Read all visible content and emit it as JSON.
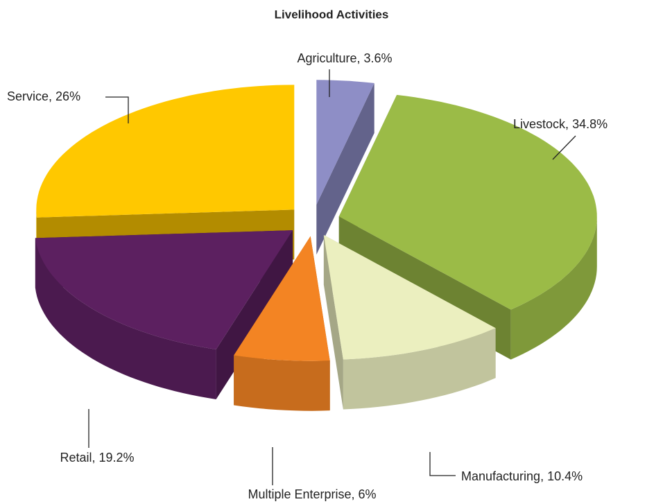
{
  "chart_data": {
    "type": "pie3d",
    "title": "Livelihood Activities",
    "categories": [
      "Agriculture",
      "Livestock",
      "Manufacturing",
      "Multiple Enterprise",
      "Retail",
      "Service"
    ],
    "values": [
      3.6,
      34.8,
      10.4,
      6,
      19.2,
      26
    ],
    "value_labels": [
      "3.6%",
      "34.8%",
      "10.4%",
      "6%",
      "19.2%",
      "26%"
    ],
    "colors": [
      "#8e8ec6",
      "#9bbb47",
      "#ebefbf",
      "#f38423",
      "#5c2060",
      "#ffc800"
    ]
  }
}
